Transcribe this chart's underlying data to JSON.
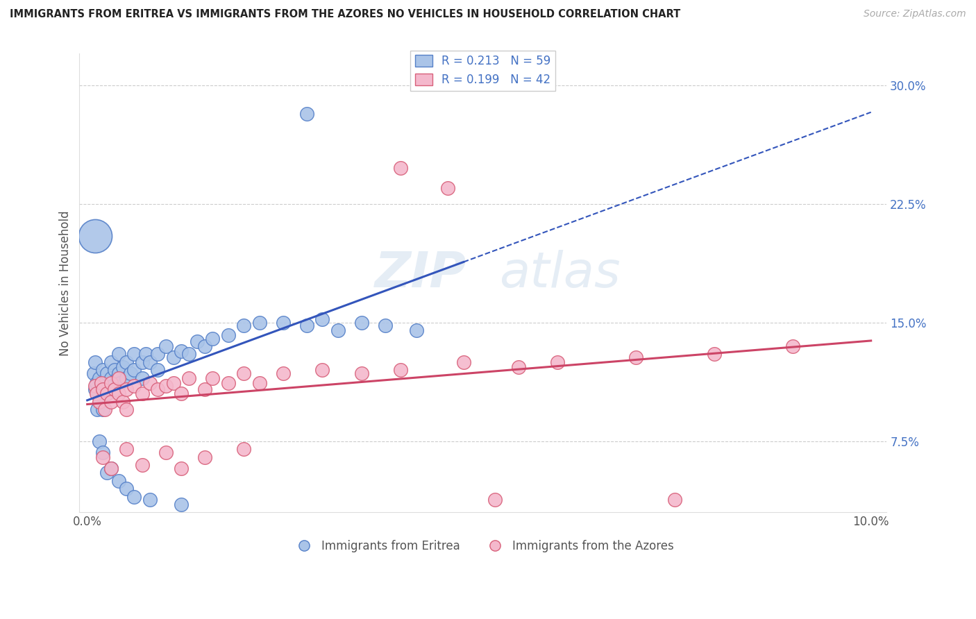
{
  "title": "IMMIGRANTS FROM ERITREA VS IMMIGRANTS FROM THE AZORES NO VEHICLES IN HOUSEHOLD CORRELATION CHART",
  "source": "Source: ZipAtlas.com",
  "ylabel": "No Vehicles in Household",
  "xlim": [
    -0.001,
    0.102
  ],
  "ylim": [
    0.03,
    0.32
  ],
  "xticks": [
    0.0,
    0.02,
    0.04,
    0.06,
    0.08,
    0.1
  ],
  "xticklabels": [
    "0.0%",
    "",
    "",
    "",
    "",
    "10.0%"
  ],
  "yticks": [
    0.075,
    0.15,
    0.225,
    0.3
  ],
  "yticklabels": [
    "7.5%",
    "15.0%",
    "22.5%",
    "30.0%"
  ],
  "legend_eritrea": "Immigrants from Eritrea",
  "legend_azores": "Immigrants from the Azores",
  "legend_r_eritrea": "R = 0.213",
  "legend_n_eritrea": "N = 59",
  "legend_r_azores": "R = 0.199",
  "legend_n_azores": "N = 42",
  "color_eritrea_fill": "#aac4e8",
  "color_eritrea_edge": "#5580c8",
  "color_azores_fill": "#f4b8cc",
  "color_azores_edge": "#d8607a",
  "color_line_eritrea": "#3355bb",
  "color_line_azores": "#cc4466",
  "color_grid": "#cccccc",
  "watermark_color": "#9ab8d8",
  "watermark_alpha": 0.25,
  "eritrea_x": [
    0.0008,
    0.001,
    0.001,
    0.0012,
    0.0013,
    0.0015,
    0.0016,
    0.0018,
    0.002,
    0.002,
    0.0022,
    0.0025,
    0.0025,
    0.003,
    0.003,
    0.0032,
    0.0035,
    0.0038,
    0.004,
    0.004,
    0.0042,
    0.0045,
    0.005,
    0.005,
    0.0055,
    0.006,
    0.006,
    0.007,
    0.007,
    0.0075,
    0.008,
    0.009,
    0.009,
    0.01,
    0.011,
    0.012,
    0.013,
    0.014,
    0.015,
    0.016,
    0.018,
    0.02,
    0.022,
    0.025,
    0.028,
    0.03,
    0.032,
    0.035,
    0.038,
    0.042,
    0.0015,
    0.002,
    0.0025,
    0.003,
    0.004,
    0.005,
    0.006,
    0.008,
    0.012
  ],
  "eritrea_y": [
    0.118,
    0.108,
    0.125,
    0.112,
    0.095,
    0.115,
    0.1,
    0.108,
    0.12,
    0.095,
    0.112,
    0.118,
    0.105,
    0.115,
    0.125,
    0.11,
    0.12,
    0.115,
    0.118,
    0.13,
    0.112,
    0.122,
    0.125,
    0.115,
    0.118,
    0.12,
    0.13,
    0.125,
    0.115,
    0.13,
    0.125,
    0.13,
    0.12,
    0.135,
    0.128,
    0.132,
    0.13,
    0.138,
    0.135,
    0.14,
    0.142,
    0.148,
    0.15,
    0.15,
    0.148,
    0.152,
    0.145,
    0.15,
    0.148,
    0.145,
    0.075,
    0.068,
    0.055,
    0.058,
    0.05,
    0.045,
    0.04,
    0.038,
    0.035
  ],
  "eritrea_large_x": [
    0.001
  ],
  "eritrea_large_y": [
    0.205
  ],
  "eritrea_high_x": [
    0.028
  ],
  "eritrea_high_y": [
    0.282
  ],
  "azores_x": [
    0.001,
    0.0012,
    0.0015,
    0.0018,
    0.002,
    0.0022,
    0.0025,
    0.003,
    0.003,
    0.0035,
    0.004,
    0.004,
    0.0045,
    0.005,
    0.005,
    0.006,
    0.007,
    0.008,
    0.009,
    0.01,
    0.011,
    0.012,
    0.013,
    0.015,
    0.016,
    0.018,
    0.02,
    0.022,
    0.025,
    0.03,
    0.035,
    0.04,
    0.048,
    0.055,
    0.06,
    0.07,
    0.08,
    0.09
  ],
  "azores_y": [
    0.11,
    0.105,
    0.1,
    0.112,
    0.108,
    0.095,
    0.105,
    0.112,
    0.1,
    0.108,
    0.105,
    0.115,
    0.1,
    0.108,
    0.095,
    0.11,
    0.105,
    0.112,
    0.108,
    0.11,
    0.112,
    0.105,
    0.115,
    0.108,
    0.115,
    0.112,
    0.118,
    0.112,
    0.118,
    0.12,
    0.118,
    0.12,
    0.125,
    0.122,
    0.125,
    0.128,
    0.13,
    0.135
  ],
  "azores_outlier1_x": [
    0.04
  ],
  "azores_outlier1_y": [
    0.248
  ],
  "azores_outlier2_x": [
    0.046
  ],
  "azores_outlier2_y": [
    0.235
  ],
  "azores_bottom1_x": [
    0.052
  ],
  "azores_bottom1_y": [
    0.038
  ],
  "azores_bottom2_x": [
    0.075
  ],
  "azores_bottom2_y": [
    0.038
  ],
  "azores_low_x": [
    0.002,
    0.003,
    0.005,
    0.007,
    0.01,
    0.012,
    0.015,
    0.02
  ],
  "azores_low_y": [
    0.065,
    0.058,
    0.07,
    0.06,
    0.068,
    0.058,
    0.065,
    0.07
  ]
}
